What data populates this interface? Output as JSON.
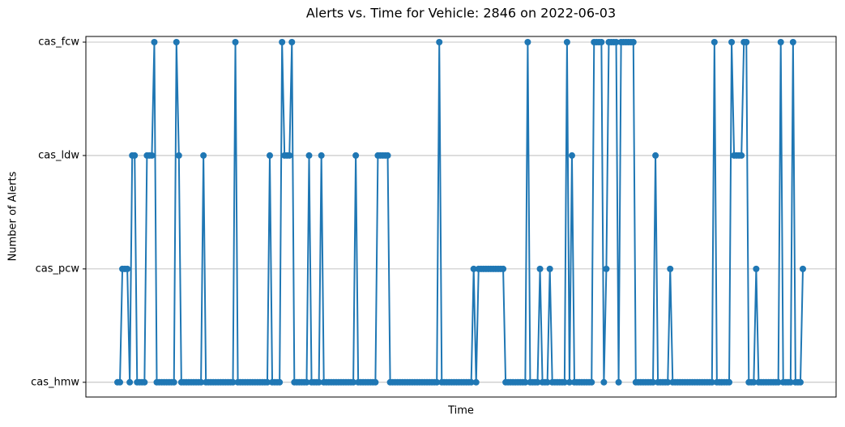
{
  "chart_data": {
    "type": "line",
    "title": "Alerts vs. Time for Vehicle: 2846 on 2022-06-03",
    "xlabel": "Time",
    "ylabel": "Number of Alerts",
    "ylim": [
      -0.13,
      3.05
    ],
    "yticks": [
      {
        "value": 0,
        "label": "cas_hmw"
      },
      {
        "value": 1,
        "label": "cas_pcw"
      },
      {
        "value": 2,
        "label": "cas_ldw"
      },
      {
        "value": 3,
        "label": "cas_fcw"
      }
    ],
    "grid": true,
    "color": "#1f77b4",
    "values": [
      0,
      0,
      1,
      1,
      1,
      0,
      2,
      2,
      0,
      0,
      0,
      0,
      2,
      2,
      2,
      3,
      0,
      0,
      0,
      0,
      0,
      0,
      0,
      0,
      3,
      2,
      0,
      0,
      0,
      0,
      0,
      0,
      0,
      0,
      0,
      2,
      0,
      0,
      0,
      0,
      0,
      0,
      0,
      0,
      0,
      0,
      0,
      0,
      3,
      0,
      0,
      0,
      0,
      0,
      0,
      0,
      0,
      0,
      0,
      0,
      0,
      0,
      2,
      0,
      0,
      0,
      0,
      3,
      2,
      2,
      2,
      3,
      0,
      0,
      0,
      0,
      0,
      0,
      2,
      0,
      0,
      0,
      0,
      2,
      0,
      0,
      0,
      0,
      0,
      0,
      0,
      0,
      0,
      0,
      0,
      0,
      0,
      2,
      0,
      0,
      0,
      0,
      0,
      0,
      0,
      0,
      2,
      2,
      2,
      2,
      2,
      0,
      0,
      0,
      0,
      0,
      0,
      0,
      0,
      0,
      0,
      0,
      0,
      0,
      0,
      0,
      0,
      0,
      0,
      0,
      0,
      3,
      0,
      0,
      0,
      0,
      0,
      0,
      0,
      0,
      0,
      0,
      0,
      0,
      0,
      1,
      0,
      1,
      1,
      1,
      1,
      1,
      1,
      1,
      1,
      1,
      1,
      1,
      0,
      0,
      0,
      0,
      0,
      0,
      0,
      0,
      0,
      3,
      0,
      0,
      0,
      0,
      1,
      0,
      0,
      0,
      1,
      0,
      0,
      0,
      0,
      0,
      0,
      3,
      0,
      2,
      0,
      0,
      0,
      0,
      0,
      0,
      0,
      0,
      3,
      3,
      3,
      3,
      0,
      1,
      3,
      3,
      3,
      3,
      0,
      3,
      3,
      3,
      3,
      3,
      3,
      0,
      0,
      0,
      0,
      0,
      0,
      0,
      0,
      2,
      0,
      0,
      0,
      0,
      0,
      1,
      0,
      0,
      0,
      0,
      0,
      0,
      0,
      0,
      0,
      0,
      0,
      0,
      0,
      0,
      0,
      0,
      0,
      3,
      0,
      0,
      0,
      0,
      0,
      0,
      3,
      2,
      2,
      2,
      2,
      3,
      3,
      0,
      0,
      0,
      1,
      0,
      0,
      0,
      0,
      0,
      0,
      0,
      0,
      0,
      3,
      0,
      0,
      0,
      0,
      3,
      0,
      0,
      0,
      1
    ]
  }
}
